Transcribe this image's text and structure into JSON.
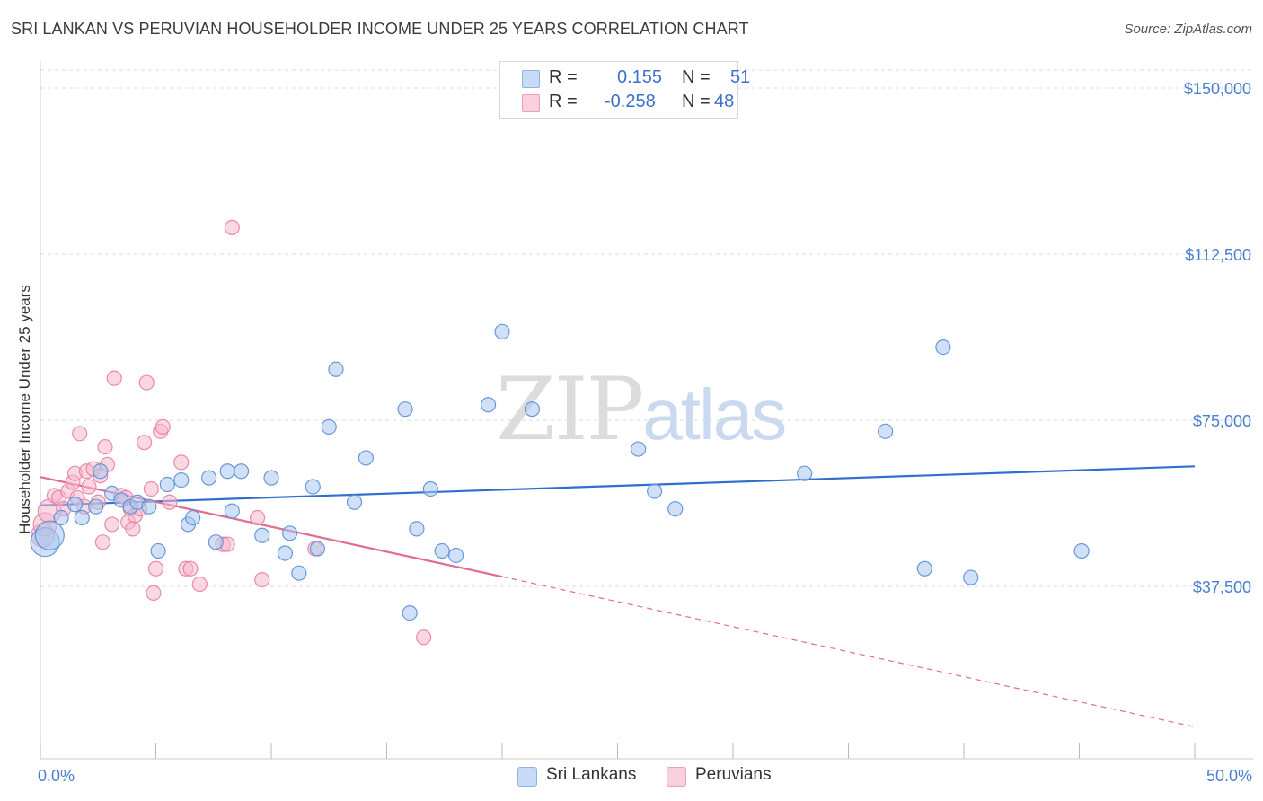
{
  "header": {
    "title": "SRI LANKAN VS PERUVIAN HOUSEHOLDER INCOME UNDER 25 YEARS CORRELATION CHART",
    "source": "Source: ZipAtlas.com"
  },
  "watermark": {
    "zip": "ZIP",
    "atlas": "atlas"
  },
  "legend": {
    "rows": [
      {
        "r_label": "R =",
        "r_value": "0.155",
        "n_label": "N =",
        "n_value": "51",
        "color": "#aecbf2"
      },
      {
        "r_label": "R =",
        "r_value": "-0.258",
        "n_label": "N =",
        "n_value": "48",
        "color": "#f7b9cd"
      }
    ]
  },
  "bottom_legend": [
    {
      "label": "Sri Lankans",
      "color": "#aecbf2"
    },
    {
      "label": "Peruvians",
      "color": "#f7b9cd"
    }
  ],
  "colors": {
    "blue_fill": "#a9c6ef",
    "blue_stroke": "#5b8fd6",
    "blue_line": "#2f6fd0",
    "pink_fill": "#f6b8cc",
    "pink_stroke": "#e7819f",
    "pink_line": "#e56a90",
    "tick_text": "#4a7fd0",
    "grid": "#dddddd"
  },
  "chart_data": {
    "type": "scatter",
    "title": "SRI LANKAN VS PERUVIAN HOUSEHOLDER INCOME UNDER 25 YEARS CORRELATION CHART",
    "xlabel": "",
    "ylabel": "Householder Income Under 25 years",
    "xlim": [
      0,
      50
    ],
    "ylim": [
      0,
      155000
    ],
    "x_tick_labels": [
      "0.0%",
      "50.0%"
    ],
    "y_ticks": [
      37500,
      75000,
      112500,
      150000
    ],
    "y_tick_labels": [
      "$37,500",
      "$75,000",
      "$112,500",
      "$150,000"
    ],
    "grid": true,
    "series": [
      {
        "name": "Sri Lankans",
        "r": 0.155,
        "n": 51,
        "trend": {
          "x": [
            0,
            50
          ],
          "y": [
            55800,
            64600
          ],
          "dashed_to": null
        },
        "points": [
          [
            0.2,
            47500
          ],
          [
            0.4,
            49000
          ],
          [
            0.9,
            53000
          ],
          [
            1.8,
            53000
          ],
          [
            1.5,
            56000
          ],
          [
            2.4,
            55500
          ],
          [
            2.6,
            63500
          ],
          [
            3.1,
            58500
          ],
          [
            3.5,
            57000
          ],
          [
            3.9,
            55500
          ],
          [
            4.2,
            56500
          ],
          [
            4.7,
            55500
          ],
          [
            5.1,
            45500
          ],
          [
            5.5,
            60500
          ],
          [
            6.1,
            61500
          ],
          [
            6.4,
            51500
          ],
          [
            6.6,
            53000
          ],
          [
            7.3,
            62000
          ],
          [
            7.6,
            47500
          ],
          [
            8.1,
            63500
          ],
          [
            8.3,
            54500
          ],
          [
            8.7,
            63500
          ],
          [
            9.6,
            49000
          ],
          [
            10.0,
            62000
          ],
          [
            10.6,
            45000
          ],
          [
            10.8,
            49500
          ],
          [
            11.2,
            40500
          ],
          [
            11.8,
            60000
          ],
          [
            12.0,
            46000
          ],
          [
            12.5,
            73500
          ],
          [
            12.8,
            86500
          ],
          [
            13.6,
            56500
          ],
          [
            14.1,
            66500
          ],
          [
            15.8,
            77500
          ],
          [
            16.0,
            31500
          ],
          [
            16.3,
            50500
          ],
          [
            16.9,
            59500
          ],
          [
            17.4,
            45500
          ],
          [
            18.0,
            44500
          ],
          [
            19.4,
            78500
          ],
          [
            20.0,
            95000
          ],
          [
            21.3,
            77500
          ],
          [
            25.9,
            68500
          ],
          [
            26.6,
            59000
          ],
          [
            27.5,
            55000
          ],
          [
            33.1,
            63000
          ],
          [
            36.6,
            72500
          ],
          [
            38.3,
            41500
          ],
          [
            39.1,
            91500
          ],
          [
            40.3,
            39500
          ],
          [
            45.1,
            45500
          ]
        ]
      },
      {
        "name": "Peruvians",
        "r": -0.258,
        "n": 48,
        "trend": {
          "x": [
            0,
            20
          ],
          "y": [
            62200,
            39700
          ],
          "dashed_to": [
            50,
            5800
          ]
        },
        "points": [
          [
            0.1,
            49000
          ],
          [
            0.2,
            51500
          ],
          [
            0.4,
            54500
          ],
          [
            0.6,
            58000
          ],
          [
            0.8,
            57500
          ],
          [
            1.0,
            55000
          ],
          [
            1.2,
            59000
          ],
          [
            1.4,
            61000
          ],
          [
            1.5,
            63000
          ],
          [
            1.6,
            57500
          ],
          [
            1.7,
            72000
          ],
          [
            2.0,
            63500
          ],
          [
            2.1,
            60000
          ],
          [
            2.3,
            64000
          ],
          [
            2.5,
            56500
          ],
          [
            2.6,
            62500
          ],
          [
            2.7,
            47500
          ],
          [
            2.8,
            69000
          ],
          [
            2.9,
            65000
          ],
          [
            3.1,
            51500
          ],
          [
            3.2,
            84500
          ],
          [
            3.5,
            58000
          ],
          [
            3.7,
            57500
          ],
          [
            3.8,
            52000
          ],
          [
            3.9,
            55000
          ],
          [
            4.0,
            50500
          ],
          [
            4.1,
            53500
          ],
          [
            4.3,
            55000
          ],
          [
            4.5,
            70000
          ],
          [
            4.6,
            83500
          ],
          [
            4.8,
            59500
          ],
          [
            4.9,
            36000
          ],
          [
            5.0,
            41500
          ],
          [
            5.2,
            72500
          ],
          [
            5.3,
            73500
          ],
          [
            5.6,
            56500
          ],
          [
            6.1,
            65500
          ],
          [
            6.3,
            41500
          ],
          [
            6.5,
            41500
          ],
          [
            6.9,
            38000
          ],
          [
            7.9,
            47000
          ],
          [
            8.1,
            47000
          ],
          [
            8.3,
            118500
          ],
          [
            9.4,
            53000
          ],
          [
            9.6,
            39000
          ],
          [
            11.9,
            46000
          ],
          [
            16.6,
            26000
          ],
          [
            1.9,
            55500
          ]
        ]
      }
    ]
  }
}
